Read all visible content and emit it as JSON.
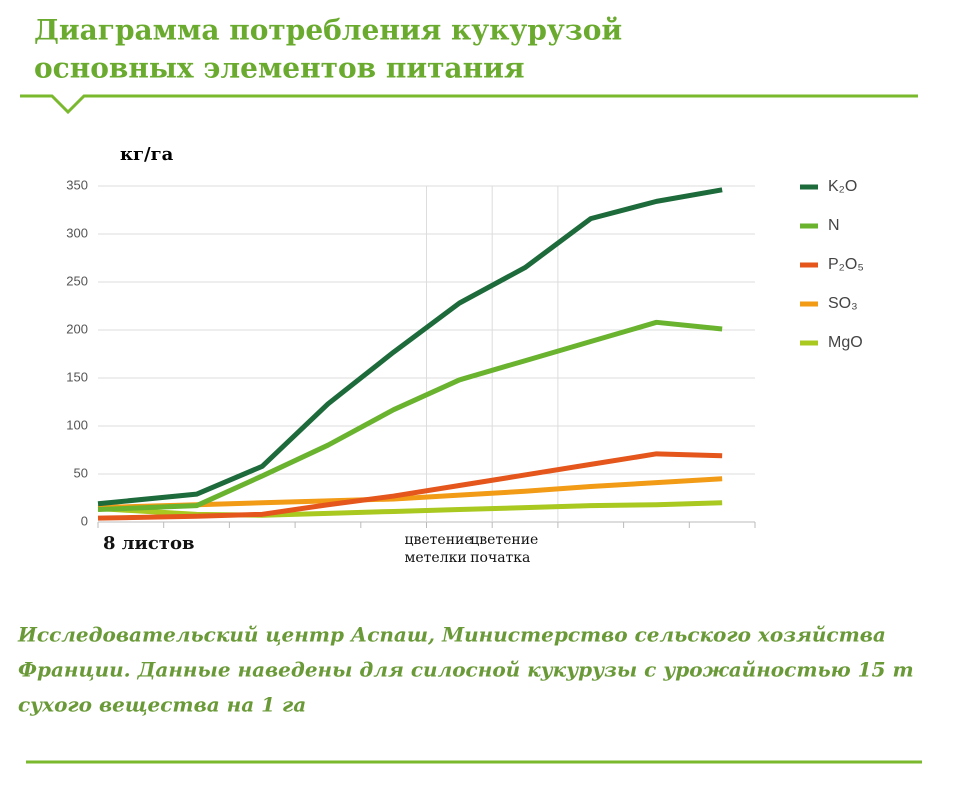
{
  "chart_data": {
    "type": "line",
    "title_lines": [
      "Диаграмма потребления кукурузой",
      "основных элементов питания"
    ],
    "y_label": "кг/га",
    "x": [
      0,
      1.5,
      2.5,
      3.5,
      4.5,
      5.5,
      6.5,
      7.5,
      8.5,
      9.5
    ],
    "xlim": [
      0,
      10
    ],
    "xticks": [
      0,
      1,
      2,
      3,
      4,
      5,
      6,
      7,
      8,
      9,
      10
    ],
    "vlines": [
      5,
      6,
      7
    ],
    "x_annotations": [
      {
        "x": 0,
        "label": "8 листов"
      },
      {
        "x": 5,
        "label": "цветение метелки"
      },
      {
        "x": 6,
        "label": "цветение початка"
      }
    ],
    "ylim": [
      0,
      350
    ],
    "yticks": [
      0,
      50,
      100,
      150,
      200,
      250,
      300,
      350
    ],
    "grid": true,
    "legend": "right",
    "series": [
      {
        "name": "K₂O",
        "color": "#1d6a3b",
        "values": [
          19,
          29,
          58,
          123,
          177,
          228,
          265,
          316,
          334,
          346
        ]
      },
      {
        "name": "N",
        "color": "#69b32e",
        "values": [
          13,
          17,
          48,
          80,
          117,
          148,
          168,
          188,
          208,
          201
        ]
      },
      {
        "name": "P₂O₅",
        "color": "#e4561c",
        "values": [
          4,
          6,
          8,
          18,
          27,
          38,
          49,
          60,
          71,
          69
        ]
      },
      {
        "name": "SO₃",
        "color": "#f29b16",
        "values": [
          15,
          18,
          20,
          22,
          24,
          28,
          32,
          37,
          41,
          45
        ]
      },
      {
        "name": "MgO",
        "color": "#a9c820",
        "values": [
          14,
          8,
          7,
          9,
          11,
          13,
          15,
          17,
          18,
          20
        ]
      }
    ],
    "source_lines": [
      "Исследовательский центр Аспаш, Министерство сельского хозяйства",
      "Франции. Данные наведены для силосной кукурузы с урожайностью  15 т",
      "сухого вещества на  1 га"
    ]
  }
}
